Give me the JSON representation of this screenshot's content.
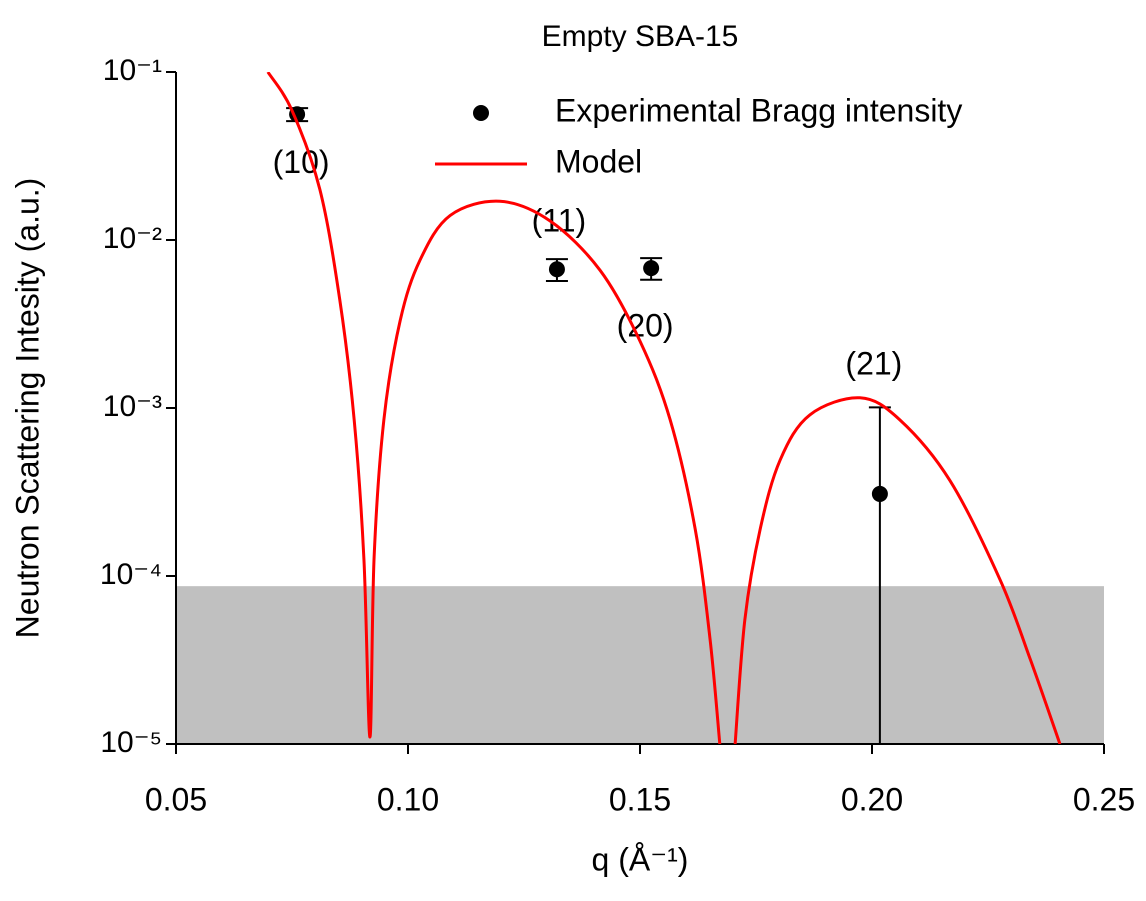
{
  "chart_data": {
    "type": "scatter",
    "title": "Empty SBA-15",
    "x_label": "q (Å⁻¹)",
    "y_label": "Neutron Scattering Intesity (a.u.)",
    "xlim": [
      0.05,
      0.25
    ],
    "ylim": [
      1e-05,
      0.1
    ],
    "log_y": true,
    "xticks": [
      0.05,
      {
        "value": 0.1,
        "label": "0.10"
      },
      0.15,
      {
        "value": 0.2,
        "label": "0.20"
      },
      0.25
    ],
    "yticks": [
      {
        "value": 1e-05,
        "label": "10⁻⁵"
      },
      {
        "value": 0.0001,
        "label": "10⁻⁴"
      },
      {
        "value": 0.001,
        "label": "10⁻³"
      },
      {
        "value": 0.01,
        "label": "10⁻²"
      },
      {
        "value": 0.1,
        "label": "10⁻¹"
      }
    ],
    "legend": "upper right",
    "shaded_region": {
      "ymax": 8.7e-05,
      "color": "#c0c0c0"
    },
    "series": [
      {
        "name": "Experimental Bragg intensity",
        "type": "scatter",
        "color": "#000000",
        "x": [
          0.0761,
          0.1321,
          0.1524,
          0.2017
        ],
        "values": [
          0.056,
          0.0067,
          0.0068,
          0.000308
        ],
        "errors": [
          0.005,
          0.001,
          0.001,
          0.0007
        ],
        "point_labels": [
          "(10)",
          "(11)",
          "(20)",
          "(21)"
        ]
      },
      {
        "name": "Model",
        "type": "line",
        "color": "#ff0000",
        "x": [
          0.0698,
          0.075,
          0.081,
          0.0853,
          0.0884,
          0.0905,
          0.0918,
          0.0927,
          0.0948,
          0.0983,
          0.1026,
          0.1091,
          0.1198,
          0.1306,
          0.1414,
          0.15,
          0.1565,
          0.1619,
          0.1651,
          0.1672,
          null,
          0.1705,
          0.1726,
          0.1759,
          0.1802,
          0.1866,
          0.1974,
          0.206,
          0.2168,
          0.2276,
          0.2341,
          0.2405
        ],
        "values": [
          0.1,
          0.059,
          0.02,
          0.0044,
          0.00085,
          0.000126,
          1.1e-05,
          0.00013,
          0.00085,
          0.0033,
          0.0076,
          0.014,
          0.017,
          0.013,
          0.0066,
          0.0025,
          0.00085,
          0.00019,
          4.2e-05,
          1e-05,
          null,
          1e-05,
          5.5e-05,
          0.00019,
          0.00049,
          0.00091,
          0.00115,
          0.00085,
          0.00037,
          9.5e-05,
          3.2e-05,
          1e-05
        ]
      }
    ]
  }
}
